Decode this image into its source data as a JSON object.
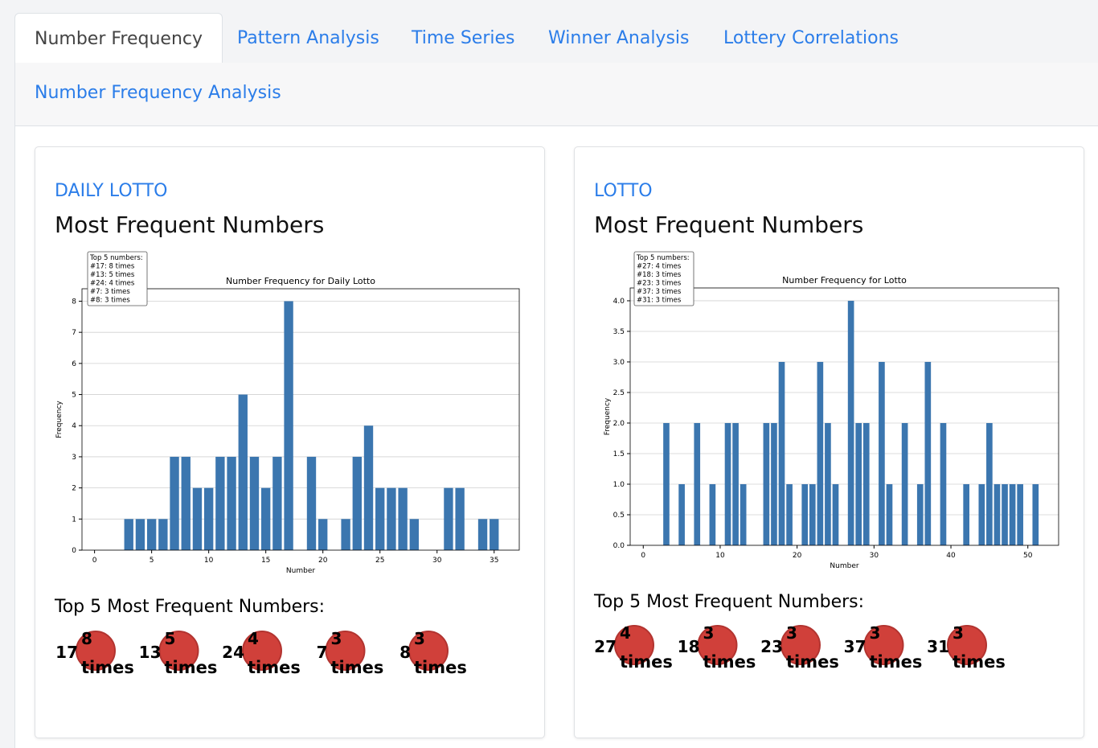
{
  "tabs": [
    "Number Frequency",
    "Pattern Analysis",
    "Time Series",
    "Winner Analysis",
    "Lottery Correlations"
  ],
  "section_title": "Number Frequency Analysis",
  "cards": [
    {
      "lottery": "DAILY LOTTO",
      "heading": "Most Frequent Numbers",
      "chart": {
        "type": "bar",
        "title": "Number Frequency for Daily Lotto",
        "xlabel": "Number",
        "ylabel": "Frequency",
        "color": "#3b76af",
        "annotation": [
          "Top 5 numbers:",
          "#17: 8 times",
          "#13: 5 times",
          "#24: 4 times",
          "#7: 3 times",
          "#8: 3 times"
        ],
        "x": [
          3,
          4,
          5,
          6,
          7,
          8,
          9,
          10,
          11,
          12,
          13,
          14,
          15,
          16,
          17,
          19,
          20,
          22,
          23,
          24,
          25,
          26,
          27,
          28,
          31,
          32,
          34,
          35
        ],
        "values": [
          1,
          1,
          1,
          1,
          3,
          3,
          2,
          2,
          3,
          3,
          5,
          3,
          2,
          3,
          8,
          3,
          1,
          1,
          3,
          4,
          2,
          2,
          2,
          1,
          2,
          2,
          1,
          1
        ],
        "xlim": [
          -1.1,
          37.2
        ],
        "xticks": [
          0,
          5,
          10,
          15,
          20,
          25,
          30,
          35
        ],
        "ylim": [
          0,
          8.4
        ],
        "yticks": [
          0,
          1,
          2,
          3,
          4,
          5,
          6,
          7,
          8
        ],
        "grid": true
      },
      "top_heading": "Top 5 Most Frequent Numbers:",
      "times_label": "times",
      "top": [
        {
          "number": 17,
          "count": 8
        },
        {
          "number": 13,
          "count": 5
        },
        {
          "number": 24,
          "count": 4
        },
        {
          "number": 7,
          "count": 3
        },
        {
          "number": 8,
          "count": 3
        }
      ]
    },
    {
      "lottery": "LOTTO",
      "heading": "Most Frequent Numbers",
      "chart": {
        "type": "bar",
        "title": "Number Frequency for Lotto",
        "xlabel": "Number",
        "ylabel": "Frequency",
        "color": "#3b76af",
        "annotation": [
          "Top 5 numbers:",
          "#27: 4 times",
          "#18: 3 times",
          "#23: 3 times",
          "#37: 3 times",
          "#31: 3 times"
        ],
        "x": [
          3,
          5,
          7,
          9,
          11,
          12,
          13,
          16,
          17,
          18,
          19,
          21,
          22,
          23,
          24,
          25,
          27,
          28,
          29,
          31,
          32,
          34,
          36,
          37,
          39,
          42,
          44,
          45,
          46,
          47,
          48,
          49,
          51
        ],
        "values": [
          2,
          1,
          2,
          1,
          2,
          2,
          1,
          2,
          2,
          3,
          1,
          1,
          1,
          3,
          2,
          1,
          4,
          2,
          2,
          3,
          1,
          2,
          1,
          3,
          2,
          1,
          1,
          2,
          1,
          1,
          1,
          1,
          1
        ],
        "xlim": [
          -1.7,
          54.0
        ],
        "xticks": [
          0,
          10,
          20,
          30,
          40,
          50
        ],
        "ylim": [
          0,
          4.21
        ],
        "yticks": [
          {
            "value": 0,
            "label": "0.0"
          },
          {
            "value": 0.5,
            "label": "0.5"
          },
          {
            "value": 1,
            "label": "1.0"
          },
          {
            "value": 1.5,
            "label": "1.5"
          },
          {
            "value": 2,
            "label": "2.0"
          },
          {
            "value": 2.5,
            "label": "2.5"
          },
          {
            "value": 3,
            "label": "3.0"
          },
          {
            "value": 3.5,
            "label": "3.5"
          },
          {
            "value": 4,
            "label": "4.0"
          }
        ],
        "grid": true
      },
      "top_heading": "Top 5 Most Frequent Numbers:",
      "times_label": "times",
      "top": [
        {
          "number": 27,
          "count": 4
        },
        {
          "number": 18,
          "count": 3
        },
        {
          "number": 23,
          "count": 3
        },
        {
          "number": 37,
          "count": 3
        },
        {
          "number": 31,
          "count": 3
        }
      ]
    }
  ]
}
